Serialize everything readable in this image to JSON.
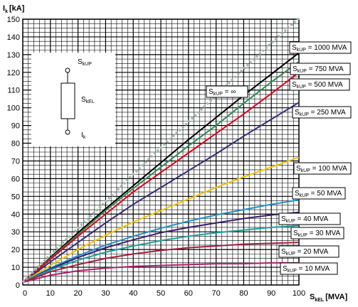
{
  "chart_data": {
    "type": "line",
    "xlabel_main": "S",
    "xlabel_sub": "kEL",
    "xlabel_unit": "[MVA]",
    "ylabel_main": "I",
    "ylabel_sub": "k",
    "ylabel_unit": "[kA]",
    "xlim": [
      0,
      100
    ],
    "ylim": [
      0,
      150
    ],
    "x_ticks": [
      0,
      10,
      20,
      30,
      40,
      50,
      60,
      70,
      80,
      90,
      100
    ],
    "y_ticks": [
      0,
      10,
      20,
      30,
      40,
      50,
      60,
      70,
      80,
      90,
      100,
      110,
      120,
      130,
      140,
      150
    ],
    "grid": true,
    "x": [
      0,
      10,
      20,
      30,
      40,
      50,
      60,
      70,
      80,
      90,
      100
    ],
    "series": [
      {
        "name_main": "S",
        "name_sub": "kUP",
        "name_tail": " = ∞",
        "color": "#9fb7a8",
        "dashed": true,
        "values": [
          1.5,
          17.0,
          32.0,
          47.0,
          62.5,
          77.5,
          92.0,
          107.0,
          122.0,
          136.5,
          150.5
        ]
      },
      {
        "name_main": "S",
        "name_sub": "kUP",
        "name_tail": " = 1000 MVA",
        "color": "#000000",
        "dashed": false,
        "values": [
          1.5,
          15.5,
          29.5,
          43.0,
          56.0,
          69.0,
          82.0,
          94.5,
          107.0,
          119.0,
          131.0
        ]
      },
      {
        "name_main": "S",
        "name_sub": "kUP",
        "name_tail": " = 750 MVA",
        "color": "#2e8b57",
        "dashed": false,
        "values": [
          1.5,
          15.0,
          28.5,
          42.0,
          54.5,
          66.5,
          78.5,
          90.0,
          102.5,
          114.5,
          126.0
        ]
      },
      {
        "name_main": "S",
        "name_sub": "kUP",
        "name_tail": " = 500 MVA",
        "color": "#e0001a",
        "dashed": false,
        "values": [
          1.5,
          14.5,
          27.5,
          40.0,
          52.5,
          63.5,
          74.5,
          85.5,
          96.5,
          108.0,
          120.0
        ]
      },
      {
        "name_main": "S",
        "name_sub": "kUP",
        "name_tail": " = 250 MVA",
        "color": "#3a2a7a",
        "dashed": false,
        "values": [
          1.5,
          13.0,
          24.0,
          35.0,
          45.5,
          55.0,
          64.5,
          74.0,
          84.0,
          93.5,
          103.0
        ]
      },
      {
        "name_main": "S",
        "name_sub": "kUP",
        "name_tail": " = 100 MVA",
        "color": "#f2c200",
        "dashed": false,
        "values": [
          1.5,
          11.0,
          20.0,
          28.0,
          35.5,
          42.0,
          48.5,
          55.0,
          61.0,
          66.5,
          72.0
        ]
      },
      {
        "name_main": "S",
        "name_sub": "kUP",
        "name_tail": " = 50 MVA",
        "color": "#1e90c8",
        "dashed": false,
        "values": [
          1.5,
          9.5,
          16.5,
          22.5,
          27.5,
          32.0,
          36.0,
          39.5,
          42.5,
          45.5,
          48.0
        ]
      },
      {
        "name_main": "S",
        "name_sub": "kUP",
        "name_tail": " = 40 MVA",
        "color": "#3d1a6e",
        "dashed": false,
        "values": [
          1.5,
          9.0,
          15.5,
          21.0,
          25.5,
          29.5,
          32.5,
          35.0,
          37.5,
          39.5,
          41.0
        ]
      },
      {
        "name_main": "S",
        "name_sub": "kUP",
        "name_tail": " = 30 MVA",
        "color": "#1aa0a0",
        "dashed": false,
        "values": [
          1.5,
          8.5,
          14.0,
          18.5,
          22.0,
          25.0,
          27.5,
          29.5,
          31.0,
          32.5,
          33.5
        ]
      },
      {
        "name_main": "S",
        "name_sub": "kUP",
        "name_tail": " = 20 MVA",
        "color": "#a0203c",
        "dashed": false,
        "values": [
          1.5,
          7.5,
          11.5,
          15.0,
          17.5,
          19.5,
          21.0,
          22.0,
          23.0,
          23.5,
          24.0
        ]
      },
      {
        "name_main": "S",
        "name_sub": "kUP",
        "name_tail": " = 10 MVA",
        "color": "#b0206e",
        "dashed": false,
        "values": [
          1.5,
          5.5,
          8.0,
          9.5,
          10.5,
          11.0,
          11.5,
          12.0,
          12.0,
          12.5,
          12.5
        ]
      }
    ],
    "inset": {
      "top_main": "S",
      "top_sub": "kUP",
      "mid_main": "S",
      "mid_sub": "kEL",
      "bot_main": "I",
      "bot_sub": "k"
    }
  }
}
